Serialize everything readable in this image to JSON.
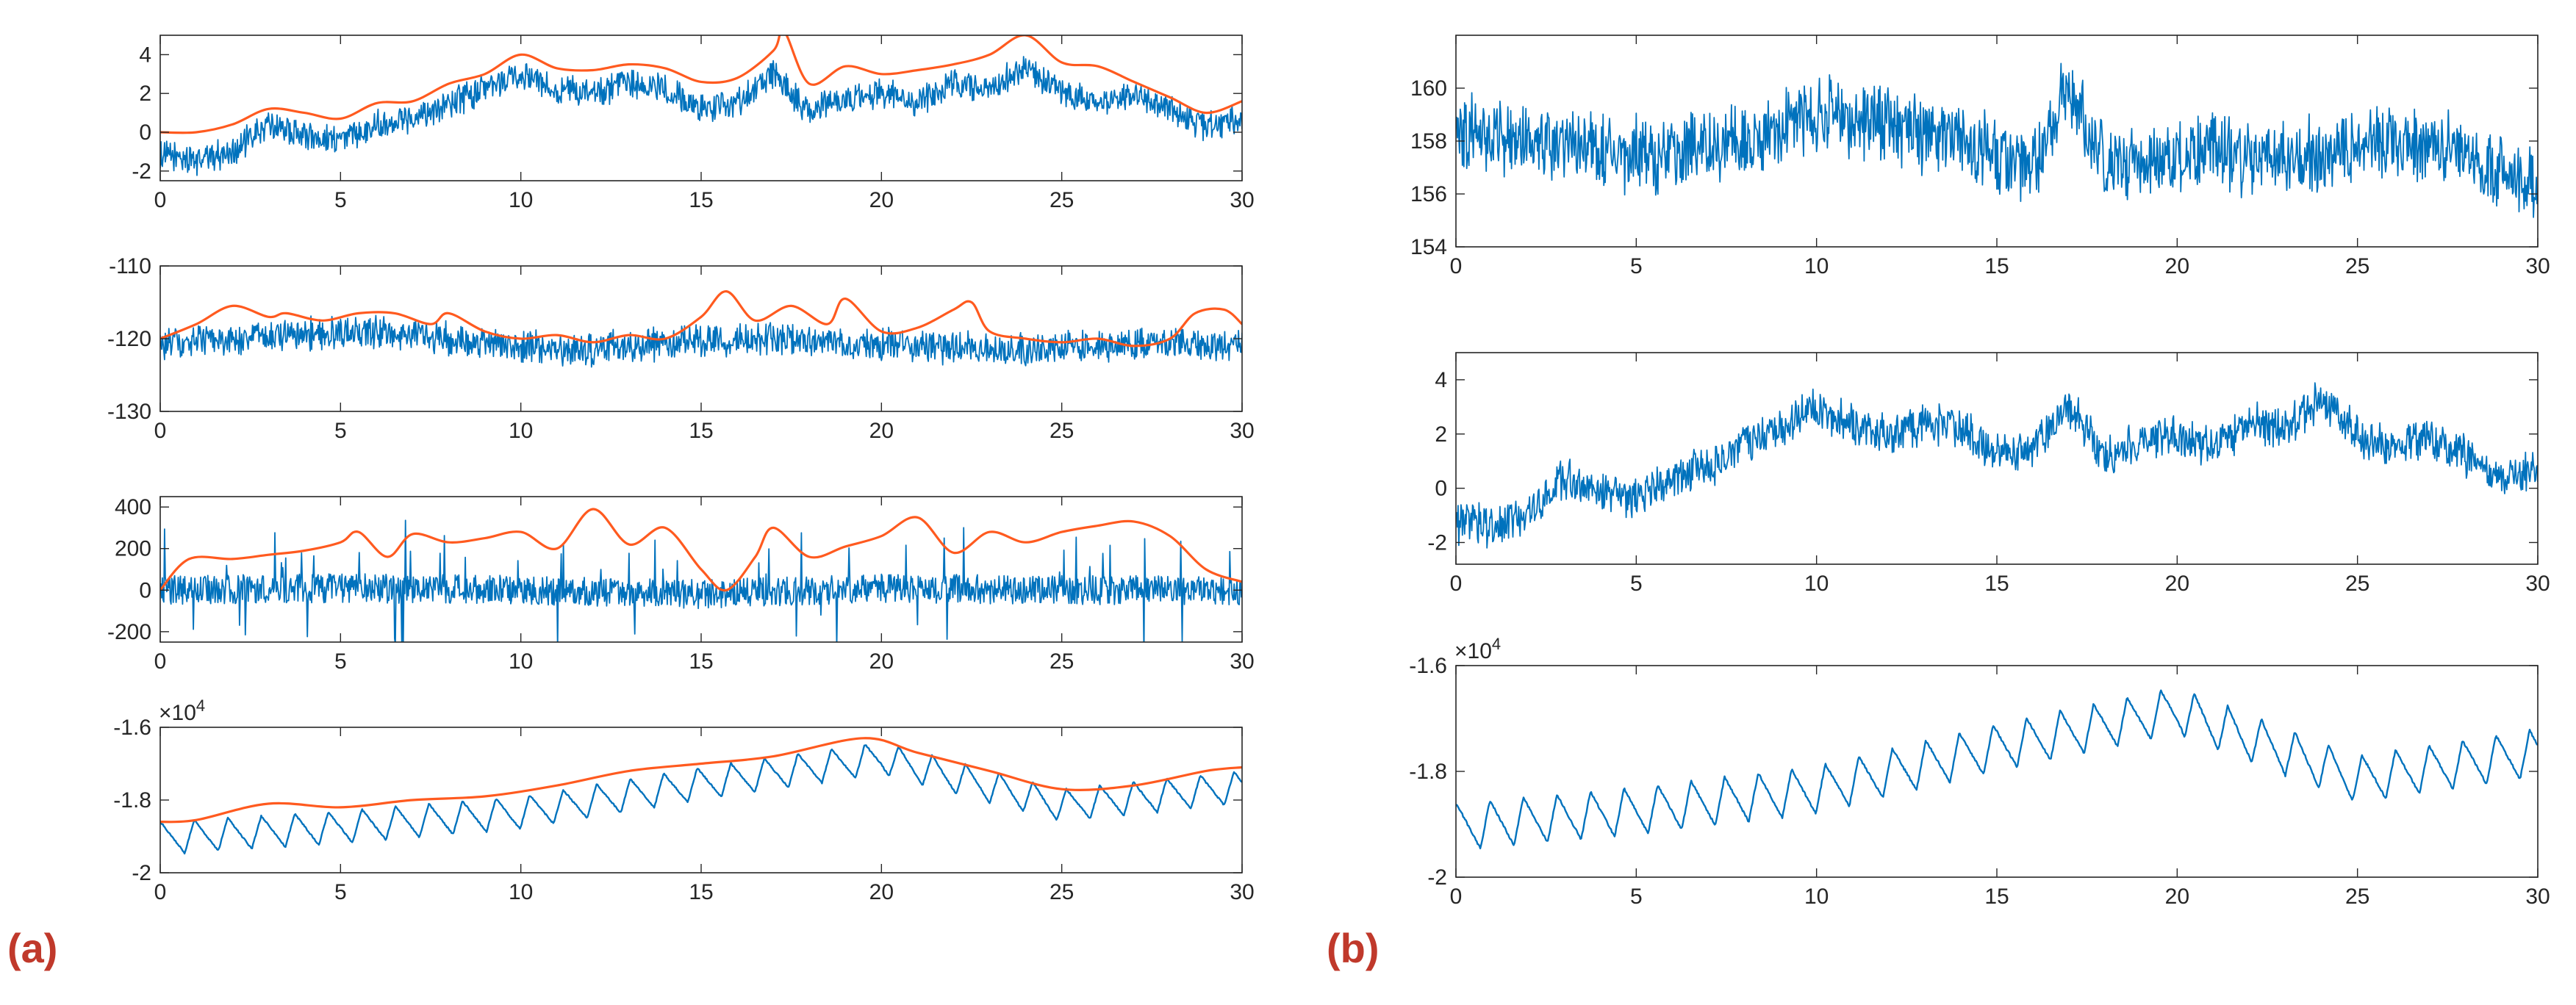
{
  "panel_labels": [
    "(a)",
    "(b)"
  ],
  "colors": {
    "signal": "#0072BD",
    "envelope": "#FF5A1F",
    "axis": "#262626",
    "label": "#c0392b"
  },
  "chart_data": [
    {
      "id": "a1",
      "type": "line",
      "panel": "(a)",
      "xlim": [
        0,
        30
      ],
      "ylim": [
        -2.5,
        5
      ],
      "xticks": [
        "0",
        "5",
        "10",
        "15",
        "20",
        "25",
        "30"
      ],
      "yticks": [
        {
          "v": 4,
          "t": "4"
        },
        {
          "v": 2,
          "t": "2"
        },
        {
          "v": 0,
          "t": "0"
        },
        {
          "v": -2,
          "t": "-2"
        }
      ],
      "exponent": "",
      "signal": {
        "kind": "noisy",
        "noise": 0.75,
        "x": [
          0,
          1,
          2,
          3,
          4,
          5,
          6,
          7,
          8,
          9,
          10,
          11,
          12,
          13,
          14,
          15,
          16,
          17,
          18,
          19,
          20,
          21,
          22,
          23,
          24,
          25,
          26,
          27,
          28,
          29,
          30
        ],
        "y": [
          -1.2,
          -1.4,
          -1.0,
          0.4,
          -0.2,
          -0.4,
          0.4,
          0.8,
          1.5,
          2.2,
          3.0,
          2.3,
          1.9,
          2.5,
          2.2,
          1.2,
          1.5,
          3.0,
          1.0,
          1.8,
          2.0,
          1.5,
          2.5,
          2.2,
          3.3,
          2.0,
          1.5,
          2.0,
          1.2,
          0.2,
          0.8
        ]
      },
      "envelope": {
        "x": [
          0,
          1,
          2,
          3,
          4,
          5,
          6,
          7,
          8,
          9,
          10,
          11,
          12,
          13,
          14,
          15,
          16,
          17,
          17.3,
          18,
          19,
          20,
          21,
          22,
          23,
          24,
          25,
          26,
          27,
          28,
          29,
          30
        ],
        "y": [
          0,
          0,
          0.4,
          1.2,
          1.0,
          0.7,
          1.5,
          1.6,
          2.5,
          3.0,
          4.0,
          3.3,
          3.2,
          3.5,
          3.3,
          2.6,
          2.8,
          4.2,
          5.2,
          2.5,
          3.4,
          3.0,
          3.2,
          3.5,
          4.0,
          5.0,
          3.6,
          3.4,
          2.6,
          1.8,
          1.0,
          1.6
        ]
      }
    },
    {
      "id": "a2",
      "type": "line",
      "panel": "(a)",
      "xlim": [
        0,
        30
      ],
      "ylim": [
        -130,
        -110
      ],
      "xticks": [
        "0",
        "5",
        "10",
        "15",
        "20",
        "25",
        "30"
      ],
      "yticks": [
        {
          "v": -110,
          "t": "-110"
        },
        {
          "v": -120,
          "t": "-120"
        },
        {
          "v": -130,
          "t": "-130"
        }
      ],
      "exponent": "",
      "signal": {
        "kind": "noisy",
        "noise": 2.2,
        "x": [
          0,
          2,
          4,
          6,
          8,
          10,
          12,
          14,
          16,
          18,
          20,
          22,
          24,
          26,
          28,
          30
        ],
        "y": [
          -121,
          -120,
          -119.5,
          -119,
          -120,
          -121,
          -121.5,
          -120.5,
          -120,
          -120.5,
          -121,
          -121,
          -121.5,
          -121,
          -120.5,
          -121
        ]
      },
      "envelope": {
        "x": [
          0,
          1,
          2,
          3,
          3.5,
          4.5,
          5.5,
          6.5,
          7.5,
          8,
          9,
          10,
          11,
          12,
          13,
          14,
          15,
          15.7,
          16.5,
          17.5,
          18.5,
          19,
          20,
          21,
          22,
          22.5,
          23,
          24,
          25,
          26,
          27,
          28,
          28.7,
          29.5,
          30
        ],
        "y": [
          -120,
          -118,
          -115.5,
          -117,
          -116.5,
          -117.5,
          -116.5,
          -116.5,
          -118,
          -116.5,
          -119,
          -120,
          -119.5,
          -120.5,
          -119.5,
          -120,
          -117,
          -113.5,
          -117.5,
          -115.5,
          -118,
          -114.5,
          -119,
          -118.5,
          -116,
          -115,
          -119,
          -120,
          -120.5,
          -120,
          -121,
          -120,
          -116.5,
          -116,
          -118
        ]
      }
    },
    {
      "id": "a3",
      "type": "line",
      "panel": "(a)",
      "xlim": [
        0,
        30
      ],
      "ylim": [
        -250,
        450
      ],
      "xticks": [
        "0",
        "5",
        "10",
        "15",
        "20",
        "25",
        "30"
      ],
      "yticks": [
        {
          "v": 400,
          "t": "400"
        },
        {
          "v": 200,
          "t": "200"
        },
        {
          "v": 0,
          "t": "0"
        },
        {
          "v": -200,
          "t": "-200"
        }
      ],
      "exponent": "",
      "signal": {
        "kind": "spiky",
        "noise": 70,
        "x": [
          0,
          5,
          10,
          15,
          20,
          25,
          30
        ],
        "y": [
          0,
          10,
          0,
          -20,
          10,
          0,
          0
        ]
      },
      "envelope": {
        "x": [
          0,
          0.8,
          2,
          3,
          4,
          5,
          5.5,
          6.3,
          7,
          8,
          9,
          10,
          11,
          12,
          13,
          14,
          15,
          15.7,
          16.5,
          17,
          18,
          19,
          20,
          21,
          22,
          23,
          24,
          25,
          26,
          27,
          28,
          29,
          30
        ],
        "y": [
          0,
          150,
          150,
          170,
          190,
          230,
          280,
          160,
          270,
          230,
          250,
          280,
          200,
          390,
          220,
          300,
          100,
          0,
          160,
          300,
          160,
          210,
          260,
          350,
          180,
          280,
          230,
          280,
          310,
          330,
          260,
          100,
          40
        ]
      }
    },
    {
      "id": "a4",
      "type": "line",
      "panel": "(a)",
      "xlim": [
        0,
        30
      ],
      "ylim": [
        -2.0,
        -1.6
      ],
      "xticks": [
        "0",
        "5",
        "10",
        "15",
        "20",
        "25",
        "30"
      ],
      "yticks": [
        {
          "v": -1.6,
          "t": "-1.6"
        },
        {
          "v": -1.8,
          "t": "-1.8"
        },
        {
          "v": -2.0,
          "t": "-2"
        }
      ],
      "exponent": "×10",
      "exponent_power": "4",
      "signal": {
        "kind": "sawtooth",
        "amplitude": 0.09,
        "period": 0.93,
        "x": [
          0,
          5,
          10,
          15,
          20,
          25,
          30
        ],
        "y": [
          -1.86,
          -1.83,
          -1.79,
          -1.71,
          -1.64,
          -1.77,
          -1.72
        ]
      },
      "envelope": {
        "x": [
          0,
          1,
          3,
          5,
          7,
          9,
          11,
          13,
          15,
          17,
          19.5,
          21,
          23,
          25,
          27,
          29,
          30
        ],
        "y": [
          -1.86,
          -1.855,
          -1.81,
          -1.82,
          -1.8,
          -1.79,
          -1.76,
          -1.72,
          -1.7,
          -1.68,
          -1.63,
          -1.67,
          -1.72,
          -1.77,
          -1.76,
          -1.72,
          -1.71
        ]
      }
    },
    {
      "id": "b1",
      "type": "line",
      "panel": "(b)",
      "xlim": [
        0,
        30
      ],
      "ylim": [
        154,
        162
      ],
      "xticks": [
        "0",
        "5",
        "10",
        "15",
        "20",
        "25",
        "30"
      ],
      "yticks": [
        {
          "v": 160,
          "t": "160"
        },
        {
          "v": 158,
          "t": "158"
        },
        {
          "v": 156,
          "t": "156"
        },
        {
          "v": 154,
          "t": "154"
        }
      ],
      "exponent": "",
      "signal": {
        "kind": "noisy",
        "noise": 1.4,
        "x": [
          0,
          2,
          4,
          6,
          8,
          10,
          12,
          14,
          16,
          17,
          18,
          20,
          22,
          24,
          26,
          28,
          30
        ],
        "y": [
          158.5,
          158,
          157.5,
          157.5,
          158,
          159,
          158.5,
          158,
          157,
          160,
          157,
          157.5,
          157.5,
          157.5,
          158,
          157.5,
          156
        ]
      }
    },
    {
      "id": "b2",
      "type": "line",
      "panel": "(b)",
      "xlim": [
        0,
        30
      ],
      "ylim": [
        -2.8,
        5
      ],
      "xticks": [
        "0",
        "5",
        "10",
        "15",
        "20",
        "25",
        "30"
      ],
      "yticks": [
        {
          "v": 4,
          "t": "4"
        },
        {
          "v": 2,
          "t": "2"
        },
        {
          "v": 0,
          "t": "0"
        },
        {
          "v": -2,
          "t": "-2"
        }
      ],
      "exponent": "",
      "signal": {
        "kind": "noisy",
        "noise": 0.75,
        "x": [
          0,
          1,
          2,
          3,
          4,
          5,
          6,
          7,
          8,
          9,
          10,
          11,
          12,
          13,
          14,
          15,
          16,
          17,
          18,
          19,
          20,
          21,
          22,
          23,
          24,
          25,
          26,
          27,
          28,
          29,
          30
        ],
        "y": [
          -1.2,
          -1.4,
          -1.0,
          0.4,
          -0.2,
          -0.4,
          0.4,
          0.8,
          1.5,
          2.2,
          3.0,
          2.3,
          1.9,
          2.5,
          2.2,
          1.2,
          1.5,
          3.0,
          1.0,
          1.8,
          2.0,
          1.5,
          2.5,
          2.2,
          3.3,
          2.0,
          1.5,
          2.0,
          1.2,
          0.2,
          0.8
        ]
      }
    },
    {
      "id": "b3",
      "type": "line",
      "panel": "(b)",
      "xlim": [
        0,
        30
      ],
      "ylim": [
        -2.0,
        -1.6
      ],
      "xticks": [
        "0",
        "5",
        "10",
        "15",
        "20",
        "25",
        "30"
      ],
      "yticks": [
        {
          "v": -1.6,
          "t": "-1.6"
        },
        {
          "v": -1.8,
          "t": "-1.8"
        },
        {
          "v": -2.0,
          "t": "-2"
        }
      ],
      "exponent": "×10",
      "exponent_power": "4",
      "signal": {
        "kind": "sawtooth",
        "amplitude": 0.09,
        "period": 0.93,
        "x": [
          0,
          5,
          10,
          15,
          20,
          25,
          30
        ],
        "y": [
          -1.86,
          -1.83,
          -1.79,
          -1.71,
          -1.64,
          -1.77,
          -1.72
        ]
      }
    }
  ]
}
